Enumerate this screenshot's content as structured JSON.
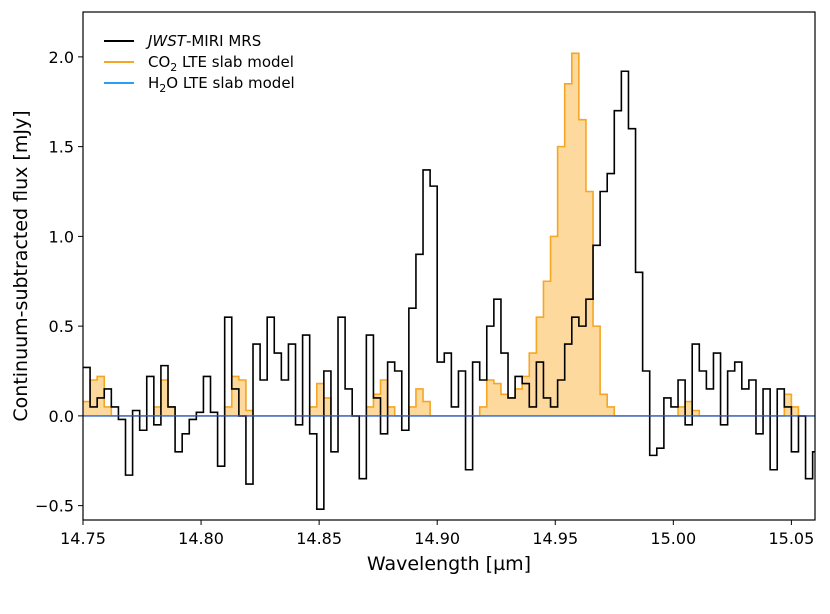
{
  "chart_data": {
    "type": "line",
    "title": "",
    "xlabel": "Wavelength [µm]",
    "ylabel": "Continuum-subtracted flux [mJy]",
    "xlim": [
      14.75,
      15.06
    ],
    "ylim": [
      -0.58,
      2.25
    ],
    "xticks": [
      14.75,
      14.8,
      14.85,
      14.9,
      14.95,
      15.0,
      15.05
    ],
    "xtick_labels": [
      "14.75",
      "14.80",
      "14.85",
      "14.90",
      "14.95",
      "15.00",
      "15.05"
    ],
    "yticks": [
      -0.5,
      0.0,
      0.5,
      1.0,
      1.5,
      2.0
    ],
    "ytick_labels": [
      "−0.5",
      "0.0",
      "0.5",
      "1.0",
      "1.5",
      "2.0"
    ],
    "legend_position": "top-left",
    "legend": [
      {
        "key": "jwst",
        "italic": "JWST",
        "text": "-MIRI MRS",
        "color": "#000000"
      },
      {
        "key": "co2",
        "main": "CO",
        "sub": "2",
        "text": " LTE slab model",
        "color": "#f5a623"
      },
      {
        "key": "h2o",
        "main": "H",
        "sub": "2",
        "text": "O LTE slab model",
        "color": "#2a9df4"
      }
    ],
    "series": [
      {
        "name": "JWST-MIRI MRS",
        "style": "step",
        "color": "#000000",
        "x": [
          14.75,
          14.753,
          14.756,
          14.759,
          14.762,
          14.765,
          14.768,
          14.771,
          14.774,
          14.777,
          14.78,
          14.783,
          14.786,
          14.789,
          14.792,
          14.795,
          14.798,
          14.801,
          14.804,
          14.807,
          14.81,
          14.813,
          14.816,
          14.819,
          14.822,
          14.825,
          14.828,
          14.831,
          14.834,
          14.837,
          14.84,
          14.843,
          14.846,
          14.849,
          14.852,
          14.855,
          14.858,
          14.861,
          14.864,
          14.867,
          14.87,
          14.873,
          14.876,
          14.879,
          14.882,
          14.885,
          14.888,
          14.891,
          14.894,
          14.897,
          14.9,
          14.903,
          14.906,
          14.909,
          14.912,
          14.915,
          14.918,
          14.921,
          14.924,
          14.927,
          14.93,
          14.933,
          14.936,
          14.939,
          14.942,
          14.945,
          14.948,
          14.951,
          14.954,
          14.957,
          14.96,
          14.963,
          14.966,
          14.969,
          14.972,
          14.975,
          14.978,
          14.981,
          14.984,
          14.987,
          14.99,
          14.993,
          14.996,
          14.999,
          15.002,
          15.005,
          15.008,
          15.011,
          15.014,
          15.017,
          15.02,
          15.023,
          15.026,
          15.029,
          15.032,
          15.035,
          15.038,
          15.041,
          15.044,
          15.047,
          15.05,
          15.053,
          15.056,
          15.059
        ],
        "y": [
          0.27,
          0.05,
          0.1,
          0.15,
          0.05,
          -0.02,
          -0.33,
          0.03,
          -0.08,
          0.22,
          -0.05,
          0.28,
          0.05,
          -0.2,
          -0.1,
          -0.02,
          0.02,
          0.22,
          0.02,
          -0.28,
          0.55,
          0.15,
          0.0,
          -0.38,
          0.4,
          0.2,
          0.55,
          0.35,
          0.2,
          0.4,
          -0.05,
          0.45,
          -0.1,
          -0.52,
          0.25,
          -0.2,
          0.55,
          0.15,
          0.0,
          -0.35,
          0.45,
          0.1,
          -0.1,
          0.3,
          0.25,
          -0.08,
          0.6,
          0.9,
          1.37,
          1.28,
          0.3,
          0.35,
          0.05,
          0.25,
          -0.3,
          0.3,
          0.2,
          0.5,
          0.65,
          0.35,
          0.1,
          0.22,
          0.18,
          0.05,
          0.3,
          0.1,
          0.05,
          0.2,
          0.4,
          0.55,
          0.5,
          0.65,
          0.95,
          1.25,
          1.35,
          1.7,
          1.92,
          1.6,
          0.8,
          0.25,
          -0.22,
          -0.18,
          0.1,
          0.05,
          0.2,
          -0.05,
          0.4,
          0.25,
          0.15,
          0.35,
          -0.05,
          0.25,
          0.3,
          0.15,
          0.2,
          -0.1,
          0.15,
          -0.3,
          0.15,
          0.05,
          -0.2,
          0.0,
          -0.35,
          -0.2
        ]
      },
      {
        "name": "CO2 LTE slab model",
        "style": "step-filled",
        "color": "#f5a623",
        "fill": "#fcd084",
        "x": [
          14.75,
          14.753,
          14.756,
          14.759,
          14.762,
          14.765,
          14.768,
          14.771,
          14.774,
          14.777,
          14.78,
          14.783,
          14.786,
          14.789,
          14.792,
          14.795,
          14.798,
          14.801,
          14.804,
          14.807,
          14.81,
          14.813,
          14.816,
          14.819,
          14.822,
          14.825,
          14.828,
          14.831,
          14.834,
          14.837,
          14.84,
          14.843,
          14.846,
          14.849,
          14.852,
          14.855,
          14.858,
          14.861,
          14.864,
          14.867,
          14.87,
          14.873,
          14.876,
          14.879,
          14.882,
          14.885,
          14.888,
          14.891,
          14.894,
          14.897,
          14.9,
          14.903,
          14.906,
          14.909,
          14.912,
          14.915,
          14.918,
          14.921,
          14.924,
          14.927,
          14.93,
          14.933,
          14.936,
          14.939,
          14.942,
          14.945,
          14.948,
          14.951,
          14.954,
          14.957,
          14.96,
          14.963,
          14.966,
          14.969,
          14.972,
          14.975,
          14.978,
          14.981,
          14.984,
          14.987,
          14.99,
          14.993,
          14.996,
          14.999,
          15.002,
          15.005,
          15.008,
          15.011,
          15.014,
          15.017,
          15.02,
          15.023,
          15.026,
          15.029,
          15.032,
          15.035,
          15.038,
          15.041,
          15.044,
          15.047,
          15.05,
          15.053,
          15.056,
          15.059
        ],
        "y": [
          0.08,
          0.2,
          0.22,
          0.05,
          0.0,
          0.0,
          0.0,
          0.0,
          0.0,
          0.0,
          0.05,
          0.2,
          0.05,
          0.0,
          0.0,
          0.0,
          0.0,
          0.0,
          0.0,
          0.0,
          0.05,
          0.22,
          0.2,
          0.03,
          0.0,
          0.0,
          0.0,
          0.0,
          0.0,
          0.0,
          0.0,
          0.0,
          0.05,
          0.18,
          0.1,
          0.0,
          0.0,
          0.0,
          0.0,
          0.0,
          0.05,
          0.12,
          0.2,
          0.05,
          0.0,
          0.0,
          0.05,
          0.15,
          0.08,
          0.0,
          0.0,
          0.0,
          0.0,
          0.0,
          0.0,
          0.0,
          0.05,
          0.2,
          0.18,
          0.12,
          0.1,
          0.15,
          0.22,
          0.35,
          0.55,
          0.75,
          1.0,
          1.5,
          1.85,
          2.02,
          1.65,
          1.25,
          0.5,
          0.12,
          0.05,
          0.0,
          0.0,
          0.0,
          0.0,
          0.0,
          0.0,
          0.0,
          0.0,
          0.0,
          0.05,
          0.08,
          0.03,
          0.0,
          0.0,
          0.0,
          0.0,
          0.0,
          0.0,
          0.0,
          0.0,
          0.0,
          0.0,
          0.0,
          0.0,
          0.12,
          0.05,
          0.0,
          0.0,
          0.0
        ]
      },
      {
        "name": "H2O LTE slab model",
        "style": "step-filled",
        "color": "#2a9df4",
        "fill": "#5fb0ea",
        "x": [
          14.75,
          14.753,
          14.756,
          14.759,
          14.762,
          14.765,
          14.768,
          14.771,
          14.774,
          14.777,
          14.78,
          14.783,
          14.786,
          14.789,
          14.792,
          14.795,
          14.798,
          14.801,
          14.804,
          14.807,
          14.81,
          14.813,
          14.816,
          14.819,
          14.822,
          14.825,
          14.828,
          14.831,
          14.834,
          14.837,
          14.84,
          14.843,
          14.846,
          14.849,
          14.852,
          14.855,
          14.858,
          14.861,
          14.864,
          14.867,
          14.87,
          14.873,
          14.876,
          14.879,
          14.882,
          14.885,
          14.888,
          14.891,
          14.894,
          14.897,
          14.9,
          14.903,
          14.906,
          14.909,
          14.912,
          14.915,
          14.918,
          14.921,
          14.924,
          14.927,
          14.93,
          14.933,
          14.936,
          14.939,
          14.942,
          14.945,
          14.948,
          14.951,
          14.954,
          14.957,
          14.96,
          14.963,
          14.966,
          14.969,
          14.972,
          14.975,
          14.978,
          14.981,
          14.984,
          14.987,
          14.99,
          14.993,
          14.996,
          14.999,
          15.002,
          15.005,
          15.008,
          15.011,
          15.014,
          15.017,
          15.02,
          15.023,
          15.026,
          15.029,
          15.032,
          15.035,
          15.038,
          15.041,
          15.044,
          15.047,
          15.05,
          15.053,
          15.056,
          15.059
        ],
        "y": [
          0.0,
          0.0,
          0.0,
          0.0,
          0.0,
          0.0,
          0.0,
          0.0,
          0.0,
          0.0,
          0.0,
          0.0,
          0.0,
          0.0,
          0.0,
          0.0,
          0.0,
          0.0,
          0.0,
          0.0,
          0.0,
          0.0,
          0.0,
          0.0,
          0.0,
          0.0,
          0.0,
          0.0,
          0.0,
          0.0,
          0.0,
          0.0,
          0.0,
          0.0,
          0.0,
          0.0,
          0.0,
          0.0,
          0.0,
          0.0,
          0.0,
          0.0,
          0.0,
          0.0,
          0.0,
          0.0,
          0.0,
          0.0,
          0.0,
          0.0,
          0.0,
          0.0,
          0.0,
          0.0,
          0.0,
          0.0,
          0.0,
          0.0,
          0.0,
          0.0,
          0.0,
          0.0,
          0.0,
          0.0,
          0.0,
          0.0,
          0.0,
          0.0,
          0.0,
          0.0,
          0.0,
          0.0,
          0.0,
          0.0,
          0.0,
          0.0,
          0.0,
          0.0,
          0.0,
          0.0,
          0.0,
          0.0,
          0.0,
          0.0,
          0.0,
          0.0,
          0.0,
          0.0,
          0.0,
          0.0,
          0.0,
          0.0,
          0.0,
          0.0,
          0.0,
          0.0,
          0.0,
          0.0,
          0.0,
          0.0,
          0.0,
          0.0,
          0.0,
          0.0
        ]
      }
    ]
  }
}
